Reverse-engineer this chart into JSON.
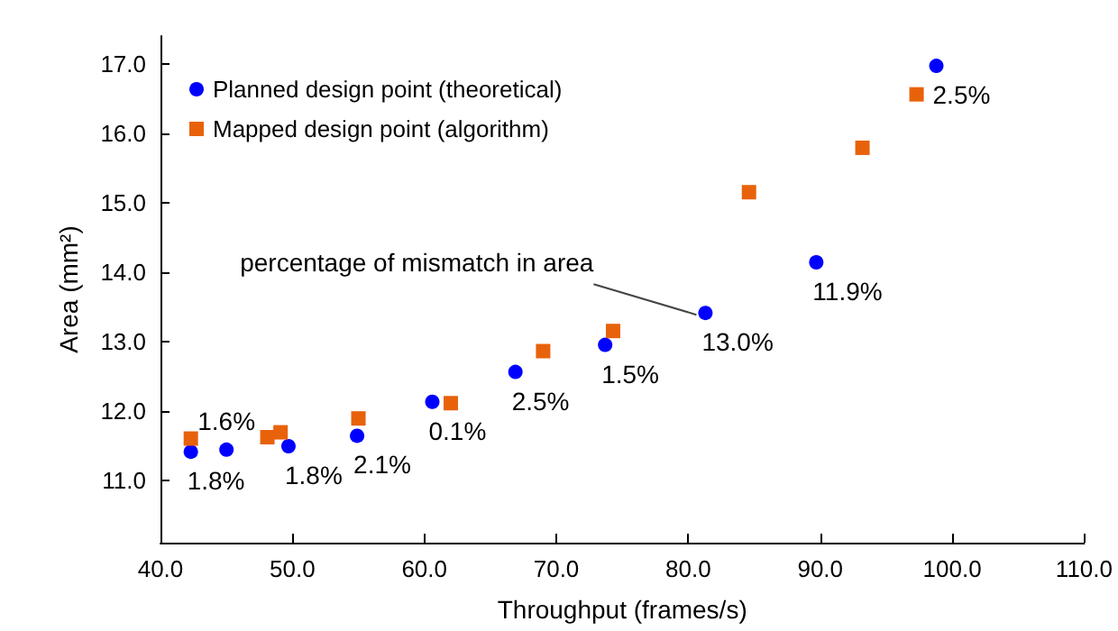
{
  "chart_data": {
    "type": "scatter",
    "xlabel": "Throughput (frames/s)",
    "ylabel": "Area (mm²)",
    "xlim": [
      40,
      110
    ],
    "ylim": [
      10.1,
      17.4
    ],
    "xticks": [
      {
        "value": 40,
        "label": "40.0"
      },
      {
        "value": 50,
        "label": "50.0"
      },
      {
        "value": 60,
        "label": "60.0"
      },
      {
        "value": 70,
        "label": "70.0"
      },
      {
        "value": 80,
        "label": "80.0"
      },
      {
        "value": 90,
        "label": "90.0"
      },
      {
        "value": 100,
        "label": "100.0"
      },
      {
        "value": 110,
        "label": "110.0"
      }
    ],
    "yticks": [
      {
        "value": 11,
        "label": "11.0"
      },
      {
        "value": 12,
        "label": "12.0"
      },
      {
        "value": 13,
        "label": "13.0"
      },
      {
        "value": 14,
        "label": "14.0"
      },
      {
        "value": 15,
        "label": "15.0"
      },
      {
        "value": 16,
        "label": "16.0"
      },
      {
        "value": 17,
        "label": "17.0"
      }
    ],
    "grid": false,
    "legend": "top left",
    "series": [
      {
        "name": "Planned design point (theoretical)",
        "color": "#0000ff",
        "marker": "circle",
        "x": [
          42.3,
          45.0,
          49.7,
          54.9,
          60.6,
          66.9,
          73.7,
          81.3,
          89.7,
          98.8
        ],
        "values": [
          11.41,
          11.44,
          11.49,
          11.64,
          12.13,
          12.56,
          12.95,
          13.41,
          14.14,
          16.97
        ]
      },
      {
        "name": "Mapped design point (algorithm)",
        "color": "#e8620c",
        "marker": "square",
        "x": [
          42.3,
          48.1,
          49.1,
          55.0,
          62.0,
          69.0,
          74.3,
          84.6,
          93.2,
          97.3
        ],
        "values": [
          11.6,
          11.62,
          11.69,
          11.89,
          12.11,
          12.86,
          13.15,
          15.15,
          15.79,
          16.56
        ]
      }
    ],
    "annotations": [
      {
        "text": "1.8%",
        "x": 42.3,
        "y": 11.41
      },
      {
        "text": "1.6%",
        "x": 45.0,
        "y": 11.44
      },
      {
        "text": "1.8%",
        "x": 49.7,
        "y": 11.49
      },
      {
        "text": "2.1%",
        "x": 54.9,
        "y": 11.64
      },
      {
        "text": "0.1%",
        "x": 60.6,
        "y": 12.13
      },
      {
        "text": "2.5%",
        "x": 66.9,
        "y": 12.56
      },
      {
        "text": "1.5%",
        "x": 73.7,
        "y": 12.95
      },
      {
        "text": "13.0%",
        "x": 81.3,
        "y": 13.41
      },
      {
        "text": "11.9%",
        "x": 89.7,
        "y": 14.14
      },
      {
        "text": "2.5%",
        "x": 98.8,
        "y": 16.97
      },
      {
        "text": "percentage of mismatch in area",
        "x": 81.3,
        "y": 13.41
      }
    ]
  }
}
